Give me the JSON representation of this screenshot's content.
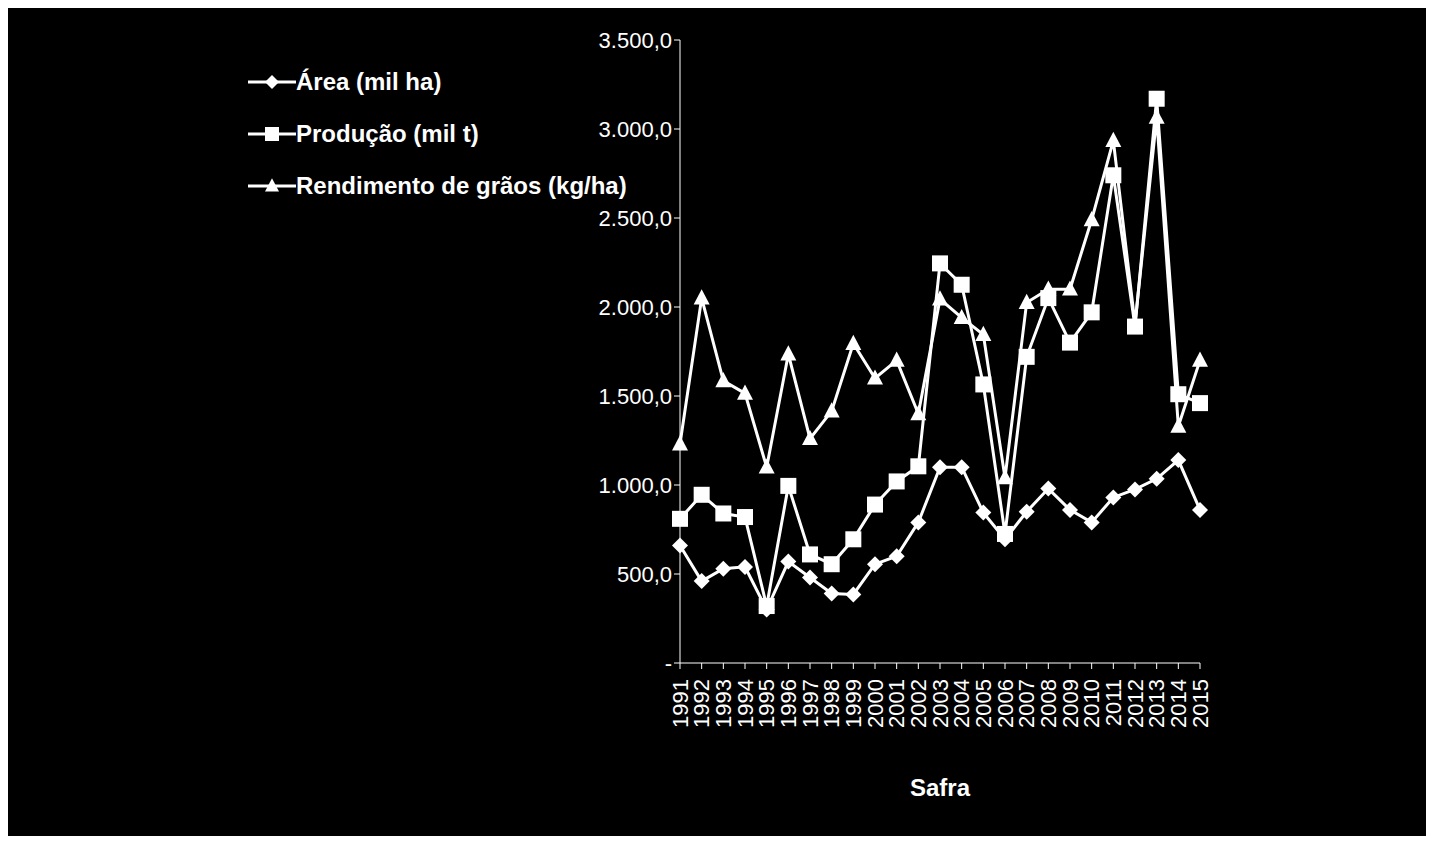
{
  "chart_data": {
    "type": "line",
    "x_label": "Safra",
    "categories": [
      "1991",
      "1992",
      "1993",
      "1994",
      "1995",
      "1996",
      "1997",
      "1998",
      "1999",
      "2000",
      "2001",
      "2002",
      "2003",
      "2004",
      "2005",
      "2006",
      "2007",
      "2008",
      "2009",
      "2010",
      "2011",
      "2012",
      "2013",
      "2014",
      "2015"
    ],
    "series": [
      {
        "name": "Área (mil ha)",
        "color": "#ffffff",
        "marker": "diamond",
        "values": [
          660,
          460,
          530,
          540,
          300,
          570,
          480,
          390,
          385,
          555,
          600,
          790,
          1100,
          1100,
          845,
          695,
          850,
          980,
          860,
          790,
          930,
          975,
          1035,
          1140,
          860
        ]
      },
      {
        "name": "Produção (mil t)",
        "color": "#ffffff",
        "marker": "square",
        "values": [
          810,
          945,
          840,
          820,
          320,
          995,
          610,
          555,
          695,
          890,
          1020,
          1105,
          2245,
          2125,
          1565,
          725,
          1720,
          2050,
          1800,
          1970,
          2740,
          1890,
          3170,
          1510,
          1460
        ]
      },
      {
        "name": "Rendimento de grãos (kg/ha)",
        "color": "#ffffff",
        "marker": "triangle",
        "values": [
          1230,
          2050,
          1585,
          1515,
          1100,
          1735,
          1260,
          1415,
          1795,
          1600,
          1700,
          1400,
          2045,
          1940,
          1845,
          1040,
          2025,
          2100,
          2100,
          2490,
          2935,
          1905,
          3065,
          1330,
          1700
        ]
      }
    ],
    "ylim": [
      0,
      3500
    ],
    "yticks": [
      {
        "value": 0,
        "label": "-"
      },
      {
        "value": 500,
        "label": "500,0"
      },
      {
        "value": 1000,
        "label": "1.000,0"
      },
      {
        "value": 1500,
        "label": "1.500,0"
      },
      {
        "value": 2000,
        "label": "2.000,0"
      },
      {
        "value": 2500,
        "label": "2.500,0"
      },
      {
        "value": 3000,
        "label": "3.000,0"
      },
      {
        "value": 3500,
        "label": "3.500,0"
      }
    ],
    "grid": false,
    "legend": "upper left"
  }
}
